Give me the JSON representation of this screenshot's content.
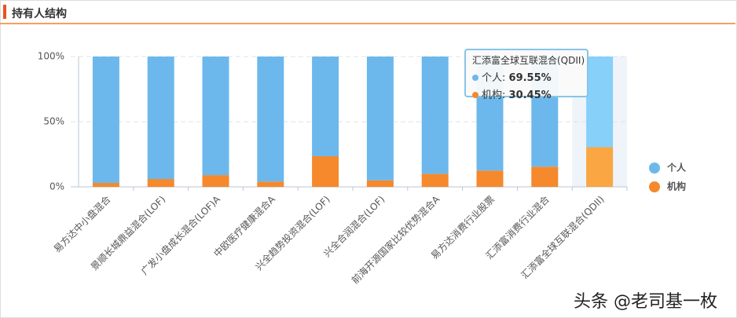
{
  "header": {
    "title": "持有人结构"
  },
  "chart_data": {
    "type": "stacked-bar",
    "categories": [
      "易方达中小盘混合",
      "景顺长城鼎益混合(LOF)",
      "广发小盘成长混合(LOF)A",
      "中欧医疗健康混合A",
      "兴全趋势投资混合(LOF)",
      "兴全合润混合(LOF)",
      "前海开源国家比较优势混合A",
      "易方达消费行业股票",
      "汇添富消费行业混合",
      "汇添富全球互联混合(QDII)"
    ],
    "series": [
      {
        "name": "个人",
        "color": "#6cb8ec",
        "highlight_color": "#86d0fa",
        "values": [
          97,
          94,
          91,
          96,
          76.5,
          95,
          90,
          87.5,
          84.5,
          69.55
        ]
      },
      {
        "name": "机构",
        "color": "#f5892c",
        "highlight_color": "#f9a643",
        "values": [
          3,
          6,
          9,
          4,
          23.5,
          5,
          10,
          12.5,
          15.5,
          30.45
        ]
      }
    ],
    "ylim": [
      0,
      100
    ],
    "yticks": [
      {
        "value": 0,
        "label": "0%"
      },
      {
        "value": 50,
        "label": "50%"
      },
      {
        "value": 100,
        "label": "100%"
      }
    ],
    "grid": true,
    "legend": "right",
    "highlight": 9,
    "tooltip": {
      "items": [
        {
          "label": "69.55%"
        },
        {
          "label": "30.45%"
        }
      ]
    }
  },
  "watermark": "头条 @老司基一枚"
}
